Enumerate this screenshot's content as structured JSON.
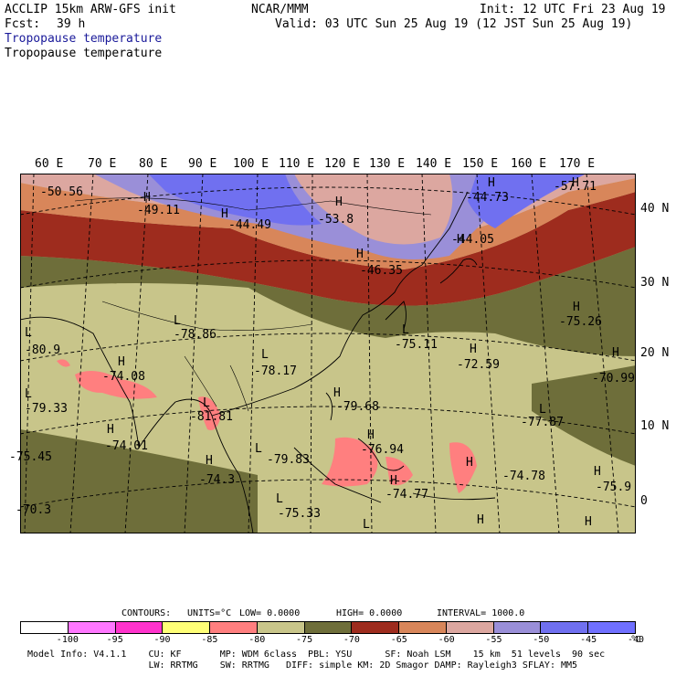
{
  "header": {
    "model": "ACCLIP 15km ARW-GFS init",
    "center": "NCAR/MMM",
    "init": "Init: 12 UTC Fri 23 Aug 19",
    "fcst_label": "Fcst:",
    "fcst_value": "39 h",
    "valid": "Valid: 03 UTC Sun 25 Aug 19 (12 JST Sun 25 Aug 19)",
    "field_title_1": "Tropopause temperature",
    "field_title_2": "Tropopause temperature"
  },
  "axes": {
    "lon_labels": [
      "60 E",
      "70 E",
      "80 E",
      "90 E",
      "100 E",
      "110 E",
      "120 E",
      "130 E",
      "140 E",
      "150 E",
      "160 E",
      "170 E"
    ],
    "lat_labels": [
      "40 N",
      "30 N",
      "20 N",
      "10 N",
      "0"
    ]
  },
  "map_labels": [
    {
      "name": "high-label",
      "text": "H"
    },
    {
      "name": "low-label",
      "text": "L"
    },
    {
      "name": "value-label",
      "text": "-50.56"
    },
    {
      "name": "value-label",
      "text": "-49.11"
    },
    {
      "name": "value-label",
      "text": "-44.49"
    },
    {
      "name": "value-label",
      "text": "-53.8"
    },
    {
      "name": "value-label",
      "text": "-46.35"
    },
    {
      "name": "value-label",
      "text": "-44.05"
    },
    {
      "name": "value-label",
      "text": "-44.73"
    },
    {
      "name": "value-label",
      "text": "-57.71"
    },
    {
      "name": "value-label",
      "text": "-78.86"
    },
    {
      "name": "value-label",
      "text": "-80.9"
    },
    {
      "name": "value-label",
      "text": "-74.08"
    },
    {
      "name": "value-label",
      "text": "-78.17"
    },
    {
      "name": "value-label",
      "text": "-75.11"
    },
    {
      "name": "value-label",
      "text": "-75.26"
    },
    {
      "name": "value-label",
      "text": "-72.59"
    },
    {
      "name": "value-label",
      "text": "-70.99"
    },
    {
      "name": "value-label",
      "text": "-79.33"
    },
    {
      "name": "value-label",
      "text": "-81.81"
    },
    {
      "name": "value-label",
      "text": "-79.68"
    },
    {
      "name": "value-label",
      "text": "-77.87"
    },
    {
      "name": "value-label",
      "text": "-74.01"
    },
    {
      "name": "value-label",
      "text": "-76.94"
    },
    {
      "name": "value-label",
      "text": "-79.83"
    },
    {
      "name": "value-label",
      "text": "-74.78"
    },
    {
      "name": "value-label",
      "text": "-75.9"
    },
    {
      "name": "value-label",
      "text": "-74.3"
    },
    {
      "name": "value-label",
      "text": "-74.77"
    },
    {
      "name": "value-label",
      "text": "-75.33"
    },
    {
      "name": "value-label",
      "text": "-75.45"
    },
    {
      "name": "value-label",
      "text": "-70.3"
    }
  ],
  "contour_info": {
    "contours_label": "CONTOURS:",
    "units": "UNITS=°C",
    "low": "LOW= 0.0000",
    "high": "HIGH= 0.0000",
    "interval": "INTERVAL= 1000.0"
  },
  "colorbar": {
    "colors": [
      "#ffffff",
      "#ff77ff",
      "#ff33cc",
      "#ffff77",
      "#ff7f7f",
      "#c8c58a",
      "#6e6e3a",
      "#9e2c1e",
      "#d8865a",
      "#dca7a0",
      "#9a8fd8",
      "#7070f0",
      "#7070ff"
    ],
    "ticks": [
      "-100",
      "-95",
      "-90",
      "-85",
      "-80",
      "-75",
      "-70",
      "-65",
      "-60",
      "-55",
      "-50",
      "-45",
      "-40",
      "°C"
    ]
  },
  "footer": {
    "line1": "Model Info: V4.1.1    CU: KF       MP: WDM 6class  PBL: YSU      SF: Noah LSM    15 km  51 levels  90 sec",
    "line2": "                      LW: RRTMG    SW: RRTMG   DIFF: simple KM: 2D Smagor DAMP: Rayleigh3 SFLAY: MM5"
  }
}
